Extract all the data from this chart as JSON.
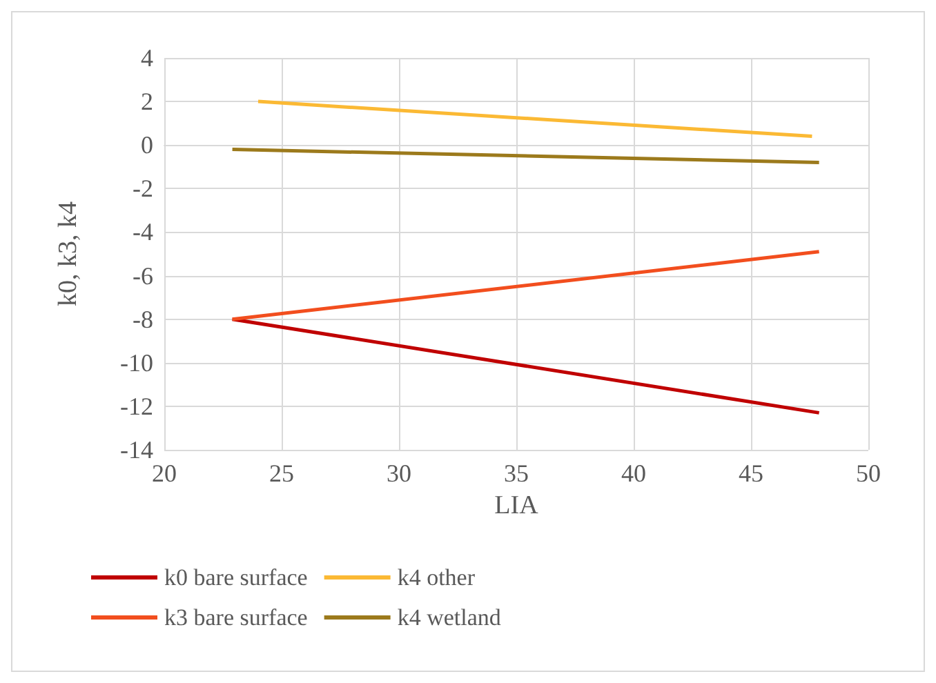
{
  "chart_data": {
    "type": "line",
    "xlabel": "LIA",
    "ylabel": "k0, k3, k4",
    "series": [
      {
        "name": "k0 bare surface",
        "color": "#c00000",
        "x": [
          22.9,
          47.9
        ],
        "values": [
          -8,
          -12.3
        ]
      },
      {
        "name": "k3 bare surface",
        "color": "#f24e1e",
        "x": [
          22.9,
          47.9
        ],
        "values": [
          -8,
          -4.9
        ]
      },
      {
        "name": "k4 other",
        "color": "#fbb934",
        "x": [
          24,
          47.6
        ],
        "values": [
          2,
          0.4
        ]
      },
      {
        "name": "k4 wetland",
        "color": "#9c7a1c",
        "x": [
          22.9,
          47.9
        ],
        "values": [
          -0.2,
          -0.8
        ]
      }
    ],
    "xlim": [
      20,
      50
    ],
    "xticks": [
      20,
      25,
      30,
      35,
      40,
      45,
      50
    ],
    "ylim": [
      -14,
      4
    ],
    "yticks": [
      -14,
      -12,
      -10,
      -8,
      -6,
      -4,
      -2,
      0,
      2,
      4
    ],
    "grid": true,
    "legend": "bottom",
    "marker": "none",
    "line_style": "solid"
  }
}
